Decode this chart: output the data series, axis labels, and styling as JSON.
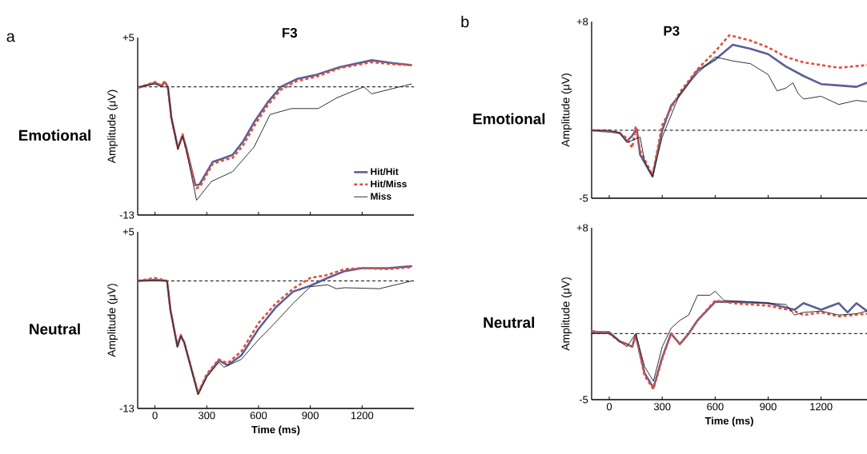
{
  "chart_data": [
    {
      "type": "line",
      "title": "F3",
      "subtitle": "Emotional",
      "annotations": [
        "a"
      ],
      "ylabel": "Amplitude (μV)",
      "xlim": [
        -100,
        1500
      ],
      "ylim": [
        -13,
        5
      ],
      "xticks": [
        0,
        300,
        600,
        900,
        1200
      ],
      "yticks": [
        {
          "value": 5,
          "label": "+5"
        },
        {
          "value": -13,
          "label": "-13"
        }
      ],
      "tick_labels": "y",
      "legend": "bottom right",
      "ref_lines": [
        {
          "axis": "y",
          "value": 0,
          "line_style": "dashed"
        }
      ],
      "series": [
        {
          "name": "Hit/Hit",
          "color": "#5b5f97",
          "line_style": "solid",
          "x": [
            -100,
            0,
            40,
            55,
            75,
            95,
            133,
            160,
            180,
            234,
            258,
            335,
            387,
            450,
            512,
            574,
            652,
            729,
            822,
            930,
            1070,
            1256,
            1380,
            1488
          ],
          "values": [
            -0.1,
            0.4,
            0.1,
            0.5,
            0,
            -3.1,
            -6.2,
            -4.9,
            -6.1,
            -10,
            -9.9,
            -7.6,
            -7.3,
            -6.9,
            -5.5,
            -3.6,
            -1.6,
            0,
            0.8,
            1.2,
            2,
            2.7,
            2.4,
            2.2
          ]
        },
        {
          "name": "Hit/Miss",
          "color": "#e0503a",
          "line_style": "dashed",
          "x": [
            -100,
            0,
            40,
            55,
            75,
            95,
            133,
            160,
            180,
            240,
            262,
            335,
            387,
            450,
            512,
            574,
            652,
            729,
            822,
            930,
            1070,
            1256,
            1380,
            1488
          ],
          "values": [
            -0.1,
            0.5,
            0.1,
            0.6,
            0,
            -3.2,
            -6.3,
            -4.8,
            -6.3,
            -10.3,
            -10.1,
            -7.8,
            -7.5,
            -7.2,
            -5.9,
            -4,
            -1.9,
            -0.3,
            0.6,
            1,
            1.9,
            2.5,
            2.3,
            2.2
          ]
        },
        {
          "name": "Miss",
          "color": "#1a1a1a",
          "line_style": "solid",
          "x": [
            -100,
            0,
            40,
            75,
            95,
            133,
            160,
            180,
            241,
            327,
            450,
            574,
            667,
            791,
            946,
            1055,
            1210,
            1256,
            1488
          ],
          "values": [
            0,
            0.3,
            0,
            0,
            -3.1,
            -6.3,
            -5,
            -6.3,
            -11.5,
            -9.6,
            -8.6,
            -6.1,
            -2.8,
            -2.2,
            -2.2,
            -1.1,
            0,
            -0.7,
            0.3
          ]
        }
      ]
    },
    {
      "type": "line",
      "subtitle": "Neutral",
      "xlabel": "Time (ms)",
      "ylabel": "Amplitude (μV)",
      "xlim": [
        -100,
        1500
      ],
      "ylim": [
        -13,
        5
      ],
      "xticks": [
        0,
        300,
        600,
        900,
        1200
      ],
      "yticks": [
        {
          "value": 5,
          "label": "+5"
        },
        {
          "value": -13,
          "label": "-13"
        }
      ],
      "ref_lines": [
        {
          "axis": "y",
          "value": 0,
          "line_style": "dashed"
        }
      ],
      "series": [
        {
          "color": "#5b5f97",
          "line_style": "solid",
          "x": [
            -100,
            0,
            70,
            90,
            130,
            150,
            170,
            250,
            300,
            370,
            420,
            500,
            600,
            700,
            800,
            900,
            1000,
            1100,
            1200,
            1350,
            1490
          ],
          "values": [
            0,
            0.1,
            0,
            -3,
            -6.7,
            -5.6,
            -6.3,
            -11.5,
            -9.7,
            -8.1,
            -8.6,
            -7.6,
            -4.9,
            -2.7,
            -1.1,
            -0.5,
            0.3,
            1,
            1.3,
            1.3,
            1.5
          ]
        },
        {
          "color": "#e0503a",
          "line_style": "dashed",
          "x": [
            -100,
            0,
            70,
            90,
            130,
            150,
            170,
            250,
            300,
            370,
            420,
            500,
            600,
            700,
            800,
            900,
            1000,
            1100,
            1200,
            1350,
            1490
          ],
          "values": [
            0,
            0.3,
            0,
            -3,
            -6.6,
            -5.5,
            -6.3,
            -11.4,
            -9.5,
            -8,
            -8.4,
            -7.2,
            -4.3,
            -2.3,
            -0.8,
            0.3,
            0.6,
            1.2,
            1.3,
            1.2,
            1.4
          ]
        },
        {
          "color": "#1a1a1a",
          "line_style": "solid",
          "x": [
            -100,
            0,
            70,
            90,
            130,
            150,
            170,
            250,
            300,
            370,
            400,
            500,
            600,
            700,
            800,
            900,
            1000,
            1050,
            1100,
            1300,
            1490
          ],
          "values": [
            0,
            0,
            0,
            -3,
            -6.7,
            -5.6,
            -6.3,
            -11.6,
            -9.8,
            -8.3,
            -8.8,
            -8,
            -6,
            -4.2,
            -2.3,
            -0.6,
            -0.4,
            -0.8,
            -0.7,
            -0.8,
            0
          ]
        }
      ]
    },
    {
      "type": "line",
      "title": "P3",
      "subtitle": "Emotional",
      "annotations": [
        "b"
      ],
      "ylabel": "Amplitude (μV)",
      "xlim": [
        -100,
        1460
      ],
      "ylim": [
        -5,
        8
      ],
      "xticks": [
        0,
        300,
        600,
        900,
        1200
      ],
      "yticks": [
        {
          "value": 8,
          "label": "+8"
        },
        {
          "value": -5,
          "label": "-5"
        }
      ],
      "tick_labels": "y",
      "ref_lines": [
        {
          "axis": "y",
          "value": 0,
          "line_style": "dashed"
        }
      ],
      "series": [
        {
          "color": "#5b5f97",
          "line_style": "solid",
          "x": [
            -100,
            0,
            60,
            100,
            130,
            155,
            175,
            245,
            300,
            350,
            400,
            500,
            600,
            700,
            800,
            900,
            1000,
            1100,
            1200,
            1300,
            1400,
            1460
          ],
          "values": [
            0,
            -0.1,
            -0.2,
            -0.8,
            -0.4,
            0.1,
            -1.8,
            -3.4,
            0,
            1.8,
            2.6,
            4.4,
            5.2,
            6.3,
            6,
            5.6,
            4.7,
            4,
            3.4,
            3.3,
            3.2,
            3.5
          ]
        },
        {
          "color": "#e0503a",
          "line_style": "dashed",
          "x": [
            -100,
            0,
            60,
            100,
            130,
            150,
            175,
            245,
            300,
            400,
            500,
            600,
            680,
            800,
            900,
            1000,
            1100,
            1200,
            1300,
            1460
          ],
          "values": [
            0,
            0,
            -0.2,
            -0.6,
            -1.3,
            0.3,
            -1.5,
            -3.3,
            0.4,
            2.8,
            4.5,
            5.8,
            7,
            6.6,
            6.1,
            5.4,
            5,
            4.8,
            4.6,
            4.8
          ]
        },
        {
          "color": "#1a1a1a",
          "line_style": "solid",
          "x": [
            -100,
            0,
            60,
            100,
            175,
            200,
            245,
            300,
            400,
            500,
            600,
            700,
            800,
            900,
            950,
            1000,
            1040,
            1070,
            1100,
            1200,
            1300,
            1400,
            1460
          ],
          "values": [
            0,
            0,
            -0.2,
            -0.9,
            -0.5,
            -2.3,
            -3.4,
            -0.5,
            2.7,
            4.2,
            5.4,
            5.1,
            4.9,
            4.1,
            2.9,
            3.1,
            3.5,
            2.7,
            2.3,
            2.5,
            1.9,
            2.2,
            2.1
          ]
        }
      ]
    },
    {
      "type": "line",
      "subtitle": "Neutral",
      "xlabel": "Time (ms)",
      "ylabel": "Amplitude (μV)",
      "xlim": [
        -100,
        1460
      ],
      "ylim": [
        -5,
        8
      ],
      "xticks": [
        0,
        300,
        600,
        900,
        1200
      ],
      "yticks": [
        {
          "value": 8,
          "label": "+8"
        },
        {
          "value": -5,
          "label": "-5"
        }
      ],
      "ref_lines": [
        {
          "axis": "y",
          "value": 0,
          "line_style": "dashed"
        }
      ],
      "series": [
        {
          "color": "#5b5f97",
          "line_style": "solid",
          "x": [
            -100,
            0,
            60,
            100,
            130,
            150,
            200,
            250,
            300,
            350,
            400,
            450,
            500,
            600,
            700,
            900,
            1050,
            1100,
            1200,
            1300,
            1350,
            1400,
            1460
          ],
          "values": [
            0.1,
            0.1,
            -0.6,
            -0.8,
            -1,
            -0.1,
            -3,
            -4.1,
            -1.8,
            0,
            -0.8,
            0,
            1,
            2.4,
            2.4,
            2.3,
            1.8,
            2.3,
            1.8,
            2.3,
            1.6,
            2.3,
            1.7
          ]
        },
        {
          "color": "#e0503a",
          "line_style": "dashed",
          "x": [
            -100,
            0,
            60,
            100,
            130,
            150,
            200,
            250,
            300,
            350,
            400,
            450,
            500,
            600,
            700,
            900,
            1050,
            1100,
            1200,
            1300,
            1460
          ],
          "values": [
            0.2,
            0,
            -0.6,
            -0.8,
            -1,
            -0.1,
            -3.2,
            -4.2,
            -1.9,
            0,
            -0.8,
            0,
            1,
            2.5,
            2.3,
            2.1,
            1.7,
            1.4,
            1.6,
            1.3,
            1.5
          ]
        },
        {
          "color": "#1a1a1a",
          "line_style": "solid",
          "x": [
            -100,
            0,
            100,
            150,
            200,
            250,
            300,
            350,
            400,
            450,
            500,
            570,
            600,
            650,
            800,
            1000,
            1050,
            1100,
            1200,
            1300,
            1400,
            1460
          ],
          "values": [
            0,
            0,
            -1,
            0,
            -2.5,
            -3.6,
            -1,
            0.4,
            1,
            1.4,
            2.9,
            2.9,
            3.2,
            2.5,
            2.4,
            2.2,
            1.4,
            1.6,
            1.7,
            1.4,
            1.5,
            1.7
          ]
        }
      ]
    }
  ]
}
